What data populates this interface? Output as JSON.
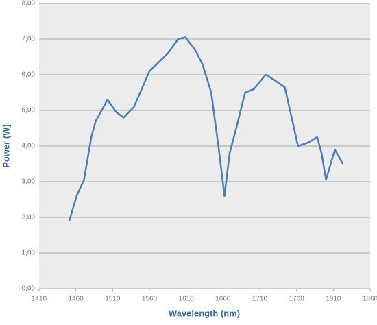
{
  "chart_data": {
    "type": "line",
    "x_label": "Wavelength (nm)",
    "y_label": "Power (W)",
    "x": [
      1451,
      1461,
      1471,
      1481,
      1487,
      1503,
      1515,
      1525,
      1539,
      1560,
      1585,
      1599,
      1609,
      1622,
      1632,
      1644,
      1655,
      1662,
      1669,
      1678,
      1690,
      1702,
      1718,
      1730,
      1744,
      1762,
      1776,
      1788,
      1794,
      1800,
      1812,
      1823
    ],
    "values": [
      1.9,
      2.6,
      3.05,
      4.25,
      4.7,
      5.3,
      4.95,
      4.8,
      5.1,
      6.1,
      6.6,
      7.0,
      7.05,
      6.7,
      6.3,
      5.5,
      3.8,
      2.6,
      3.8,
      4.5,
      5.5,
      5.6,
      6.0,
      5.85,
      5.65,
      4.0,
      4.1,
      4.25,
      3.8,
      3.05,
      3.9,
      3.5
    ],
    "color": "#4a7ebb",
    "xlim": [
      1410,
      1860
    ],
    "xticks": [
      1410,
      1460,
      1510,
      1560,
      1610,
      1660,
      1710,
      1760,
      1810,
      1860
    ],
    "ylim": [
      0,
      8
    ],
    "yticks": [
      {
        "value": 0,
        "label": "0,00"
      },
      {
        "value": 1,
        "label": "1,00"
      },
      {
        "value": 2,
        "label": "2,00"
      },
      {
        "value": 3,
        "label": "3,00"
      },
      {
        "value": 4,
        "label": "4,00"
      },
      {
        "value": 5,
        "label": "5,00"
      },
      {
        "value": 6,
        "label": "6,00"
      },
      {
        "value": 7,
        "label": "7,00"
      },
      {
        "value": 8,
        "label": "8,00"
      }
    ],
    "grid": true
  }
}
